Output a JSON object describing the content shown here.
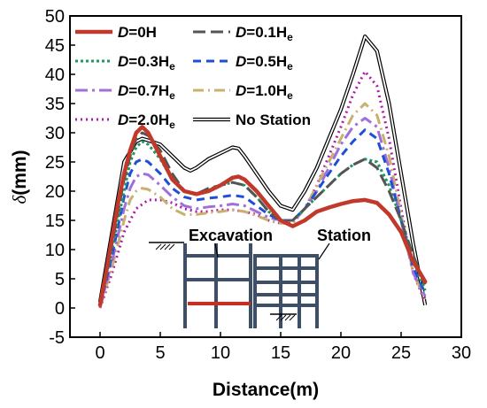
{
  "chart_data": {
    "type": "line",
    "xlabel": "Distance(m)",
    "ylabel_symbol": "δ",
    "ylabel_unit": "(mm)",
    "xlim": [
      -2.5,
      30
    ],
    "ylim": [
      -5,
      50
    ],
    "xticks": [
      0,
      5,
      10,
      15,
      20,
      25,
      30
    ],
    "yticks": [
      -5,
      0,
      5,
      10,
      15,
      20,
      25,
      30,
      35,
      40,
      45,
      50
    ],
    "legend_position": "top-left",
    "series": [
      {
        "key": "d0",
        "label_main": "D",
        "label_rest": "=0",
        "label_sub": "",
        "color": "#c0392b",
        "dash": "solid",
        "width": 4.5,
        "x": [
          0,
          0.5,
          1,
          1.5,
          2,
          2.5,
          3,
          3.5,
          4,
          4.5,
          5,
          6,
          7,
          8,
          9,
          10,
          11,
          11.5,
          12,
          13,
          14,
          15,
          16,
          17,
          18,
          19,
          20,
          21,
          22,
          23,
          24,
          25,
          26,
          27
        ],
        "y": [
          0.5,
          6,
          12,
          18,
          23,
          27,
          30,
          31,
          30,
          28,
          26,
          22,
          20,
          19.5,
          20,
          21,
          22.3,
          22.5,
          22,
          20,
          17.5,
          15,
          14,
          15,
          16.5,
          17.2,
          17.8,
          18.3,
          18.5,
          18,
          16,
          13,
          8,
          4.5
        ]
      },
      {
        "key": "d01",
        "label_main": "D",
        "label_rest": "=0.1",
        "label_sub": "e",
        "color": "#555555",
        "dash": "14,6",
        "width": 3,
        "x": [
          0,
          1,
          2,
          2.5,
          3,
          3.5,
          4,
          5,
          6,
          7,
          8,
          9,
          10,
          11,
          12,
          13,
          14,
          15,
          16,
          17,
          18,
          19,
          20,
          21,
          22,
          23,
          24,
          25,
          26,
          27
        ],
        "y": [
          0.5,
          11,
          22,
          26,
          29,
          30,
          29.5,
          27,
          23,
          20,
          19.5,
          20.5,
          21,
          21.5,
          21,
          19,
          16.5,
          15,
          15,
          17,
          19,
          21,
          23,
          24.5,
          25.5,
          24,
          20,
          15,
          9,
          4
        ]
      },
      {
        "key": "d03",
        "label_main": "D",
        "label_rest": "=0.3",
        "label_sub": "e",
        "color": "#1a9a5c",
        "dash": "3,3",
        "width": 3,
        "x": [
          0,
          1,
          2,
          2.5,
          3,
          3.5,
          4,
          5,
          6,
          7,
          8,
          9,
          10,
          11,
          12,
          13,
          14,
          15,
          16,
          17,
          18,
          19,
          20,
          21,
          22,
          23,
          24,
          25,
          26,
          27
        ],
        "y": [
          0.5,
          10,
          20,
          25,
          27.5,
          28.5,
          28,
          25.5,
          22,
          20,
          19.5,
          20.3,
          21,
          21.5,
          21,
          19,
          16.5,
          15,
          15,
          17,
          19,
          21,
          23,
          24.5,
          25.5,
          25,
          21,
          15,
          8,
          3
        ]
      },
      {
        "key": "d05",
        "label_main": "D",
        "label_rest": "=0.5",
        "label_sub": "e",
        "color": "#1f4fd6",
        "dash": "9,6",
        "width": 3,
        "x": [
          0,
          1,
          2,
          2.5,
          3,
          3.5,
          4,
          5,
          6,
          7,
          8,
          9,
          10,
          11,
          12,
          13,
          14,
          15,
          16,
          17,
          18,
          19,
          20,
          21,
          22,
          23,
          24,
          25,
          26,
          27
        ],
        "y": [
          0.3,
          9,
          19,
          23,
          25,
          25.5,
          25,
          23,
          20.5,
          19,
          18.5,
          18.8,
          19,
          19.3,
          19,
          17.5,
          16,
          15,
          15,
          17,
          20,
          23,
          26,
          28.5,
          30.5,
          29,
          23,
          15,
          7,
          2.5
        ]
      },
      {
        "key": "d07",
        "label_main": "D",
        "label_rest": "=0.7",
        "label_sub": "e",
        "color": "#a070d8",
        "dash": "14,5,3,5",
        "width": 3,
        "x": [
          0,
          1,
          2,
          2.5,
          3,
          3.5,
          4,
          5,
          6,
          7,
          8,
          9,
          10,
          11,
          12,
          13,
          14,
          15,
          16,
          17,
          18,
          19,
          20,
          21,
          22,
          23,
          24,
          25,
          26,
          27
        ],
        "y": [
          0.2,
          8,
          17,
          20.5,
          22.5,
          23,
          22.8,
          21,
          19,
          17.5,
          17,
          17.3,
          17.5,
          17.8,
          17.5,
          16.5,
          15.5,
          15,
          15,
          17,
          20,
          24,
          28,
          31,
          32.5,
          31,
          24,
          15,
          6,
          2
        ]
      },
      {
        "key": "d10",
        "label_main": "D",
        "label_rest": "=1.0",
        "label_sub": "e",
        "color": "#c8b06e",
        "dash": "12,5,2,5",
        "width": 3,
        "x": [
          0,
          1,
          2,
          2.5,
          3,
          3.5,
          4,
          5,
          6,
          7,
          8,
          9,
          10,
          11,
          12,
          13,
          14,
          15,
          16,
          17,
          18,
          19,
          20,
          21,
          22,
          23,
          24,
          25,
          26,
          27
        ],
        "y": [
          0.1,
          7,
          15,
          18.5,
          20,
          20.5,
          20.3,
          19,
          17,
          16,
          16,
          16.3,
          16.5,
          16.8,
          16.5,
          15.8,
          15,
          14.5,
          14.5,
          17,
          21,
          25,
          29,
          33,
          35,
          33,
          26,
          16,
          6,
          1.5
        ]
      },
      {
        "key": "d20",
        "label_main": "D",
        "label_rest": "=2.0",
        "label_sub": "e",
        "color": "#b01aa8",
        "dash": "2,4",
        "width": 3,
        "x": [
          0,
          1,
          2,
          3,
          4,
          5,
          6,
          7,
          8,
          9,
          10,
          11,
          12,
          13,
          14,
          15,
          16,
          17,
          18,
          19,
          20,
          21,
          22,
          23,
          24,
          25,
          26,
          27
        ],
        "y": [
          0,
          6,
          13,
          17,
          18.5,
          18.5,
          18,
          17,
          16.5,
          16.5,
          16.8,
          16.8,
          16.5,
          16,
          15,
          14.5,
          14.5,
          17,
          21,
          26,
          31,
          36.5,
          40.5,
          38,
          29,
          17,
          6,
          1
        ]
      },
      {
        "key": "nostation",
        "label_main": "No Station",
        "label_rest": "",
        "label_sub": "",
        "color": "#000000",
        "dash": "double",
        "width": 1.2,
        "x": [
          0,
          1,
          2,
          3,
          3.5,
          4,
          5,
          6,
          7,
          7.5,
          8,
          9,
          10,
          11,
          11.5,
          12,
          13,
          14,
          15,
          16,
          17,
          18,
          19,
          20,
          21,
          22,
          23,
          24,
          25,
          26,
          27
        ],
        "y": [
          1,
          13,
          25,
          28.5,
          29,
          28.7,
          28,
          26,
          24,
          23.5,
          24,
          25.5,
          26.5,
          27.5,
          27.3,
          26,
          23,
          20,
          17.5,
          16.8,
          20,
          24,
          29,
          34,
          40,
          46.5,
          44,
          35,
          23,
          11,
          0.5
        ]
      }
    ],
    "inset_labels": {
      "excavation": "Excavation",
      "station": "Station"
    }
  }
}
